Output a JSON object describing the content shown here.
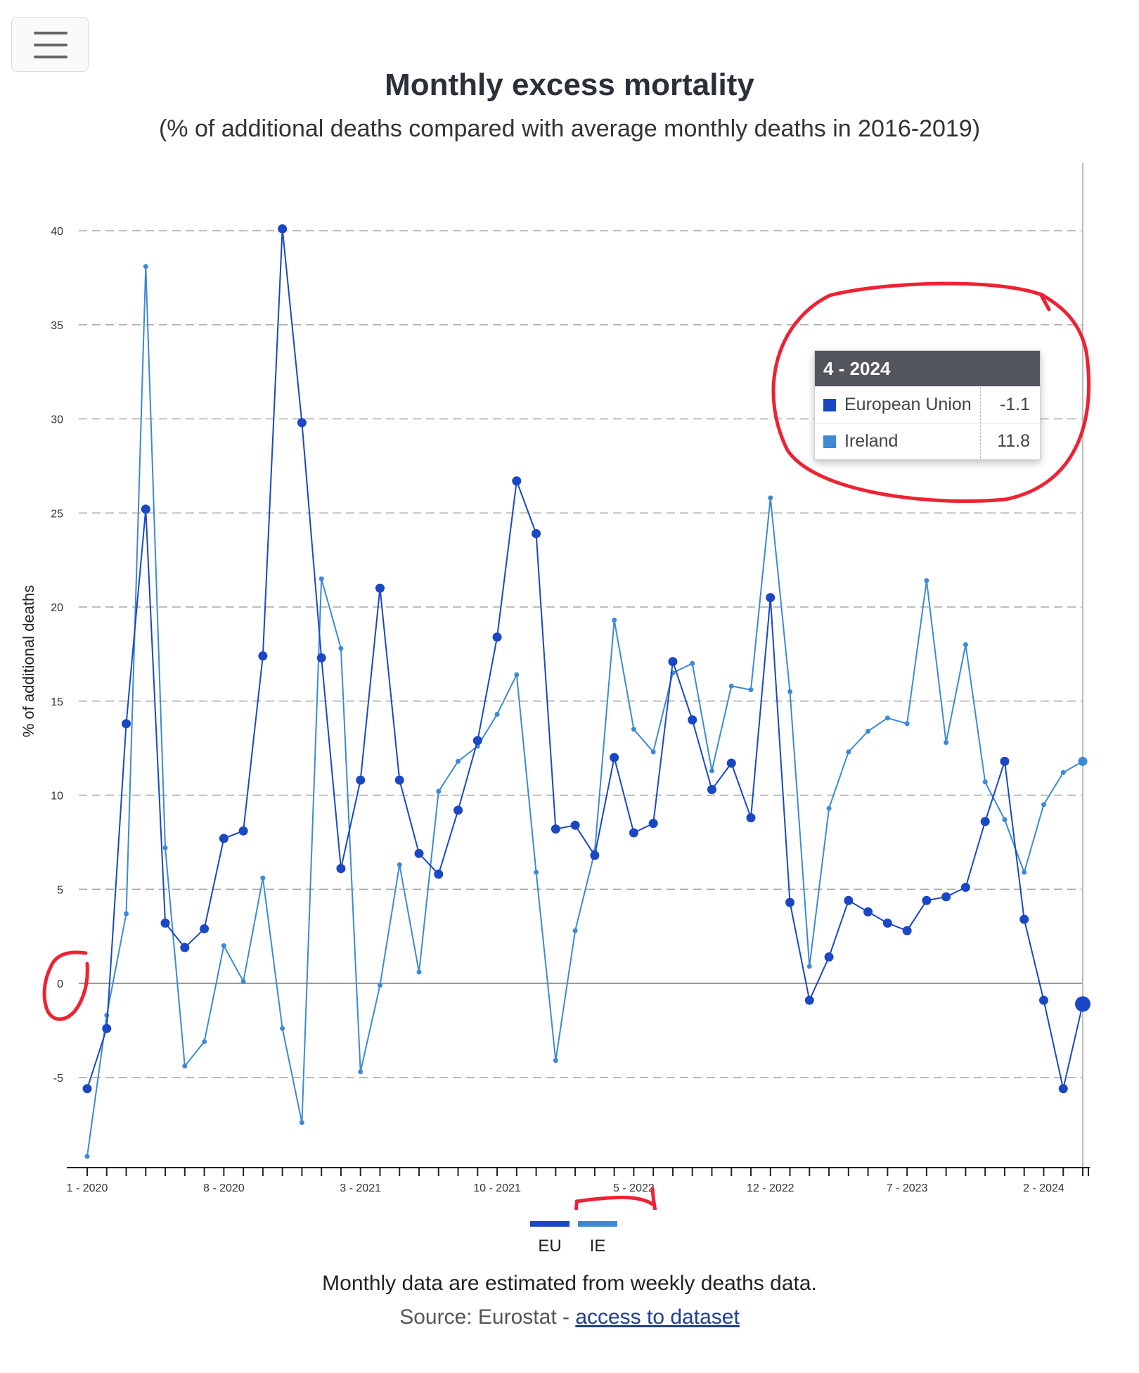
{
  "header": {
    "menu_icon": "hamburger-menu-icon"
  },
  "chart_data": {
    "type": "line",
    "title": "Monthly excess mortality",
    "subtitle": "(% of additional deaths compared with average monthly deaths in 2016-2019)",
    "ylabel": "% of additional deaths",
    "xlabel": "",
    "ylim": [
      -9.5,
      42
    ],
    "yticks": [
      -5,
      0,
      5,
      10,
      15,
      20,
      25,
      30,
      35,
      40
    ],
    "x_tick_labels": [
      "1 - 2020",
      "8 - 2020",
      "3 - 2021",
      "10 - 2021",
      "5 - 2022",
      "12 - 2022",
      "7 - 2023",
      "2 - 2024"
    ],
    "x": [
      "1-2020",
      "2-2020",
      "3-2020",
      "4-2020",
      "5-2020",
      "6-2020",
      "7-2020",
      "8-2020",
      "9-2020",
      "10-2020",
      "11-2020",
      "12-2020",
      "1-2021",
      "2-2021",
      "3-2021",
      "4-2021",
      "5-2021",
      "6-2021",
      "7-2021",
      "8-2021",
      "9-2021",
      "10-2021",
      "11-2021",
      "12-2021",
      "1-2022",
      "2-2022",
      "3-2022",
      "4-2022",
      "5-2022",
      "6-2022",
      "7-2022",
      "8-2022",
      "9-2022",
      "10-2022",
      "11-2022",
      "12-2022",
      "1-2023",
      "2-2023",
      "3-2023",
      "4-2023",
      "5-2023",
      "6-2023",
      "7-2023",
      "8-2023",
      "9-2023",
      "10-2023",
      "11-2023",
      "12-2023",
      "1-2024",
      "2-2024",
      "3-2024",
      "4-2024"
    ],
    "series": [
      {
        "name": "EU",
        "color": "#1a47c4",
        "values": [
          -5.6,
          -2.4,
          13.8,
          25.2,
          3.2,
          1.9,
          2.9,
          7.7,
          8.1,
          17.4,
          40.1,
          29.8,
          17.3,
          6.1,
          10.8,
          21.0,
          10.8,
          6.9,
          5.8,
          9.2,
          12.9,
          18.4,
          26.7,
          23.9,
          8.2,
          8.4,
          6.8,
          12.0,
          8.0,
          8.5,
          17.1,
          14.0,
          10.3,
          11.7,
          8.8,
          20.5,
          4.3,
          -0.9,
          1.4,
          4.4,
          3.8,
          3.2,
          2.8,
          4.4,
          4.6,
          5.1,
          8.6,
          11.8,
          3.4,
          -0.9,
          -5.6,
          -1.1
        ]
      },
      {
        "name": "IE",
        "color": "#3d89d6",
        "values": [
          -9.2,
          -1.7,
          3.7,
          38.1,
          7.2,
          -4.4,
          -3.1,
          2.0,
          0.1,
          5.6,
          -2.4,
          -7.4,
          21.5,
          17.8,
          -4.7,
          -0.1,
          6.3,
          0.6,
          10.2,
          11.8,
          12.6,
          14.3,
          16.4,
          5.9,
          -4.1,
          2.8,
          7.0,
          19.3,
          13.5,
          12.3,
          16.5,
          17.0,
          11.3,
          15.8,
          15.6,
          25.8,
          15.5,
          0.9,
          9.3,
          12.3,
          13.4,
          14.1,
          13.8,
          21.4,
          12.8,
          18.0,
          10.7,
          8.7,
          5.9,
          9.5,
          11.2,
          11.8
        ]
      }
    ],
    "grid": "horizontal dashed",
    "legend": "bottom-center"
  },
  "tooltip": {
    "period": "4 - 2024",
    "rows": [
      {
        "label": "European Union",
        "value": "-1.1",
        "color": "#1a47c4"
      },
      {
        "label": "Ireland",
        "value": "11.8",
        "color": "#3d89d6"
      }
    ]
  },
  "legend": [
    {
      "label": "EU",
      "color": "#1a47c4"
    },
    {
      "label": "IE",
      "color": "#3d89d6"
    }
  ],
  "footer": {
    "note": "Monthly data are estimated from weekly deaths data.",
    "source_prefix": "Source: Eurostat - ",
    "source_link": "access to dataset"
  },
  "annotation_color": "#ee2233"
}
